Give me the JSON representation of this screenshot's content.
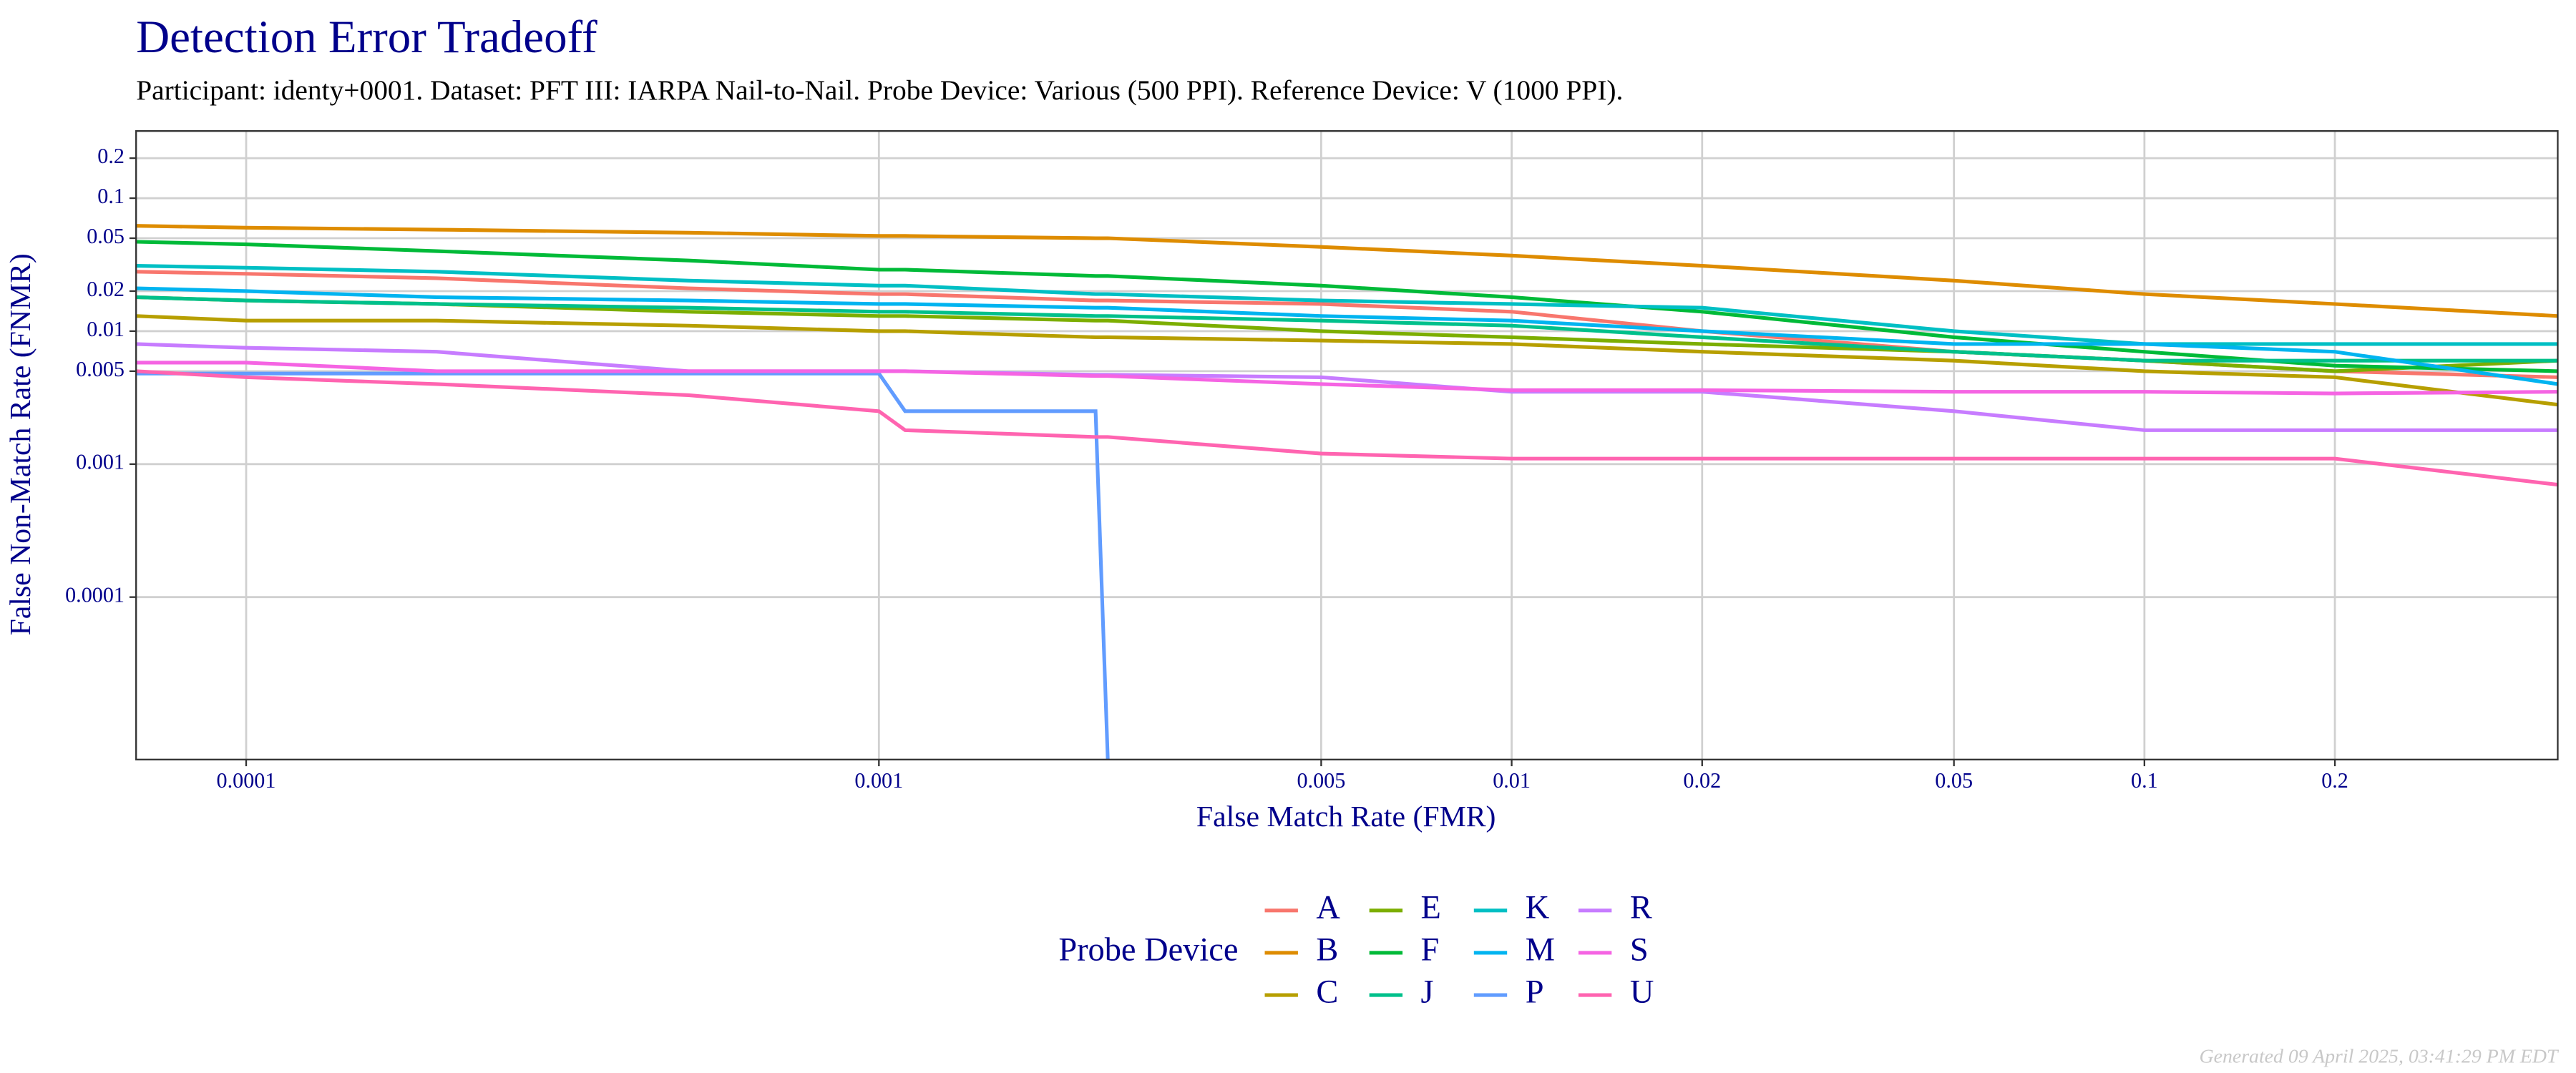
{
  "chart_data": {
    "type": "line",
    "title": "Detection Error Tradeoff",
    "subtitle": "Participant: identy+0001. Dataset: PFT III: IARPA Nail-to-Nail. Probe Device: Various (500 PPI). Reference Device: V (1000 PPI).",
    "x_label": "False Match Rate (FMR)",
    "y_label": "False Non-Match Rate (FNMR)",
    "x_scale": "log",
    "y_scale": "log",
    "grid": true,
    "legend_position": "bottom",
    "legend_title": "Probe Device",
    "xlim": [
      6.7e-05,
      0.45
    ],
    "ylim": [
      6e-06,
      0.32
    ],
    "xticks": [
      0.0001,
      0.001,
      0.005,
      0.01,
      0.02,
      0.05,
      0.1,
      0.2
    ],
    "yticks": [
      0.0001,
      0.001,
      0.005,
      0.01,
      0.02,
      0.05,
      0.1,
      0.2
    ],
    "x": [
      6.7e-05,
      0.0001,
      0.0002,
      0.0005,
      0.001,
      0.0011,
      0.0022,
      0.0023,
      0.005,
      0.01,
      0.02,
      0.05,
      0.1,
      0.2,
      0.45
    ],
    "series": [
      {
        "name": "A",
        "color": "#F8766D",
        "values": [
          0.028,
          0.027,
          0.025,
          0.021,
          0.019,
          0.019,
          0.017,
          0.017,
          0.016,
          0.014,
          0.01,
          0.007,
          0.006,
          0.005,
          0.0045
        ]
      },
      {
        "name": "B",
        "color": "#DE8C00",
        "values": [
          0.062,
          0.06,
          0.058,
          0.055,
          0.052,
          0.052,
          0.05,
          0.05,
          0.043,
          0.037,
          0.031,
          0.024,
          0.019,
          0.016,
          0.013
        ]
      },
      {
        "name": "C",
        "color": "#B79F00",
        "values": [
          0.013,
          0.012,
          0.012,
          0.011,
          0.01,
          0.01,
          0.009,
          0.009,
          0.0085,
          0.008,
          0.007,
          0.006,
          0.005,
          0.0045,
          0.0028
        ]
      },
      {
        "name": "E",
        "color": "#7CAE00",
        "values": [
          0.018,
          0.017,
          0.016,
          0.014,
          0.013,
          0.013,
          0.012,
          0.012,
          0.01,
          0.009,
          0.008,
          0.007,
          0.006,
          0.005,
          0.006
        ]
      },
      {
        "name": "F",
        "color": "#00BA38",
        "values": [
          0.047,
          0.045,
          0.04,
          0.034,
          0.029,
          0.029,
          0.026,
          0.026,
          0.022,
          0.018,
          0.014,
          0.009,
          0.007,
          0.0055,
          0.005
        ]
      },
      {
        "name": "J",
        "color": "#00C08B",
        "values": [
          0.018,
          0.017,
          0.016,
          0.015,
          0.014,
          0.014,
          0.013,
          0.013,
          0.012,
          0.011,
          0.009,
          0.007,
          0.006,
          0.006,
          0.006
        ]
      },
      {
        "name": "K",
        "color": "#00BFC4",
        "values": [
          0.031,
          0.03,
          0.028,
          0.024,
          0.022,
          0.022,
          0.019,
          0.019,
          0.017,
          0.016,
          0.015,
          0.01,
          0.008,
          0.008,
          0.008
        ]
      },
      {
        "name": "M",
        "color": "#00B4F0",
        "values": [
          0.021,
          0.02,
          0.018,
          0.017,
          0.016,
          0.016,
          0.015,
          0.015,
          0.013,
          0.012,
          0.01,
          0.008,
          0.008,
          0.007,
          0.004
        ]
      },
      {
        "name": "P",
        "color": "#619CFF",
        "values": [
          0.0048,
          0.0048,
          0.0048,
          0.0048,
          0.0048,
          0.0025,
          0.0025,
          6e-06,
          null,
          null,
          null,
          null,
          null,
          null,
          null
        ]
      },
      {
        "name": "R",
        "color": "#C77CFF",
        "values": [
          0.008,
          0.0075,
          0.007,
          0.005,
          0.005,
          0.005,
          0.0047,
          0.0047,
          0.0045,
          0.0035,
          0.0035,
          0.0025,
          0.0018,
          0.0018,
          0.0018
        ]
      },
      {
        "name": "S",
        "color": "#F564E3",
        "values": [
          0.0058,
          0.0058,
          0.005,
          0.005,
          0.005,
          0.005,
          0.0046,
          0.0046,
          0.004,
          0.0036,
          0.0036,
          0.0035,
          0.0035,
          0.0034,
          0.0035
        ]
      },
      {
        "name": "U",
        "color": "#FF64B0",
        "values": [
          0.005,
          0.0045,
          0.004,
          0.0033,
          0.0025,
          0.0018,
          0.0016,
          0.0016,
          0.0012,
          0.0011,
          0.0011,
          0.0011,
          0.0011,
          0.0011,
          0.0007
        ]
      }
    ]
  },
  "footer": "Generated 09 April 2025, 03:41:29 PM EDT"
}
